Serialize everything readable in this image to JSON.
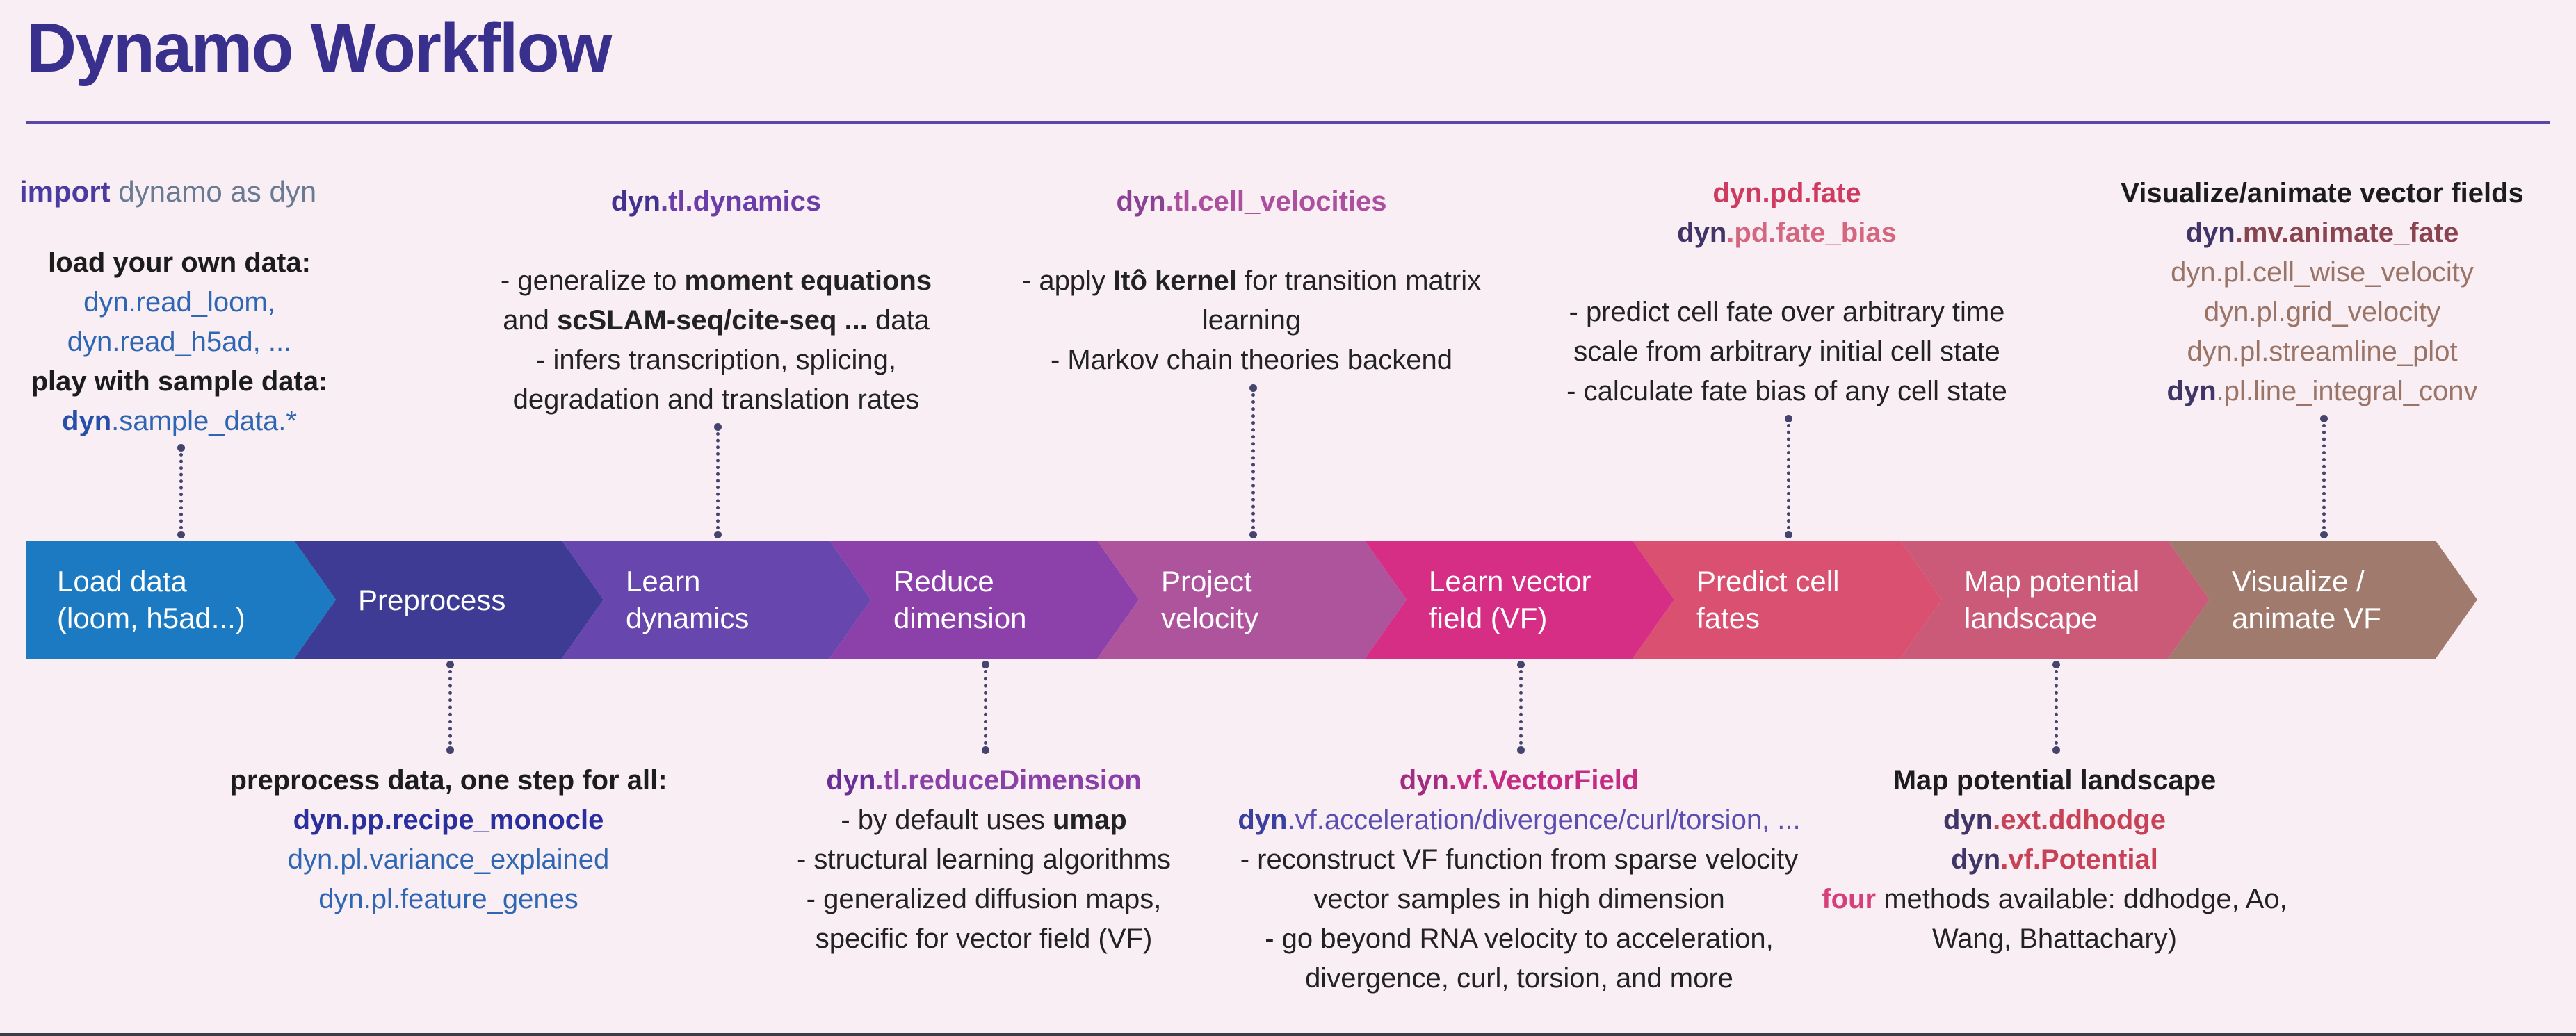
{
  "title": "Dynamo Workflow",
  "colors": {
    "background": "#f8eef3",
    "title": "#39308d",
    "divider": "#5846a8",
    "connector": "#45446f",
    "body_text": "#222222"
  },
  "import_line": [
    {
      "t": "import ",
      "c": "#4a3aa2",
      "b": true
    },
    {
      "t": "dynamo as dyn",
      "c": "#6b7a93"
    }
  ],
  "steps": [
    {
      "id": "load-data",
      "lines": [
        "Load data",
        "(loom, h5ad...)"
      ],
      "color": "#1b7ac2"
    },
    {
      "id": "preprocess",
      "lines": [
        "Preprocess"
      ],
      "color": "#3d3b94"
    },
    {
      "id": "learn-dynamics",
      "lines": [
        "Learn",
        "dynamics"
      ],
      "color": "#6746ad"
    },
    {
      "id": "reduce-dimension",
      "lines": [
        "Reduce",
        "dimension"
      ],
      "color": "#8b40aa"
    },
    {
      "id": "project-velocity",
      "lines": [
        "Project",
        "velocity"
      ],
      "color": "#ad549d"
    },
    {
      "id": "learn-vector-field",
      "lines": [
        "Learn vector",
        "field (VF)"
      ],
      "color": "#d62d85"
    },
    {
      "id": "predict-cell-fates",
      "lines": [
        "Predict cell",
        "fates"
      ],
      "color": "#d95071"
    },
    {
      "id": "map-potential-landscape",
      "lines": [
        "Map potential",
        "landscape"
      ],
      "color": "#cb5a78"
    },
    {
      "id": "visualize-animate-vf",
      "lines": [
        "Visualize /",
        "animate VF"
      ],
      "color": "#a17a6e"
    }
  ],
  "annotations_top": [
    {
      "id": "load-data-note",
      "lines": [
        [
          {
            "t": "load your own data:",
            "c": "#1c1c1c",
            "b": true
          }
        ],
        [
          {
            "t": "dyn",
            "c": "#2e66b4"
          },
          {
            "t": ".read_loom,",
            "c": "#2e66b4"
          }
        ],
        [
          {
            "t": "dyn",
            "c": "#2e66b4"
          },
          {
            "t": ".read_h5ad, ...",
            "c": "#2e66b4"
          }
        ],
        [
          {
            "t": "play with sample data:",
            "c": "#1c1c1c",
            "b": true
          }
        ],
        [
          {
            "t": "dyn",
            "c": "#274ea8",
            "b": true
          },
          {
            "t": ".sample_data.*",
            "c": "#2e66b4"
          }
        ]
      ]
    },
    {
      "id": "learn-dynamics-note",
      "lines": [
        [
          {
            "t": "dyn",
            "c": "#43318f",
            "b": true
          },
          {
            "t": ".tl.dynamics",
            "c": "#6a3da8",
            "b": true
          }
        ],
        [],
        [
          {
            "t": "- generalize to "
          },
          {
            "t": "moment equations",
            "b": true
          }
        ],
        [
          {
            "t": "and "
          },
          {
            "t": "scSLAM-seq/cite-seq ...",
            "b": true
          },
          {
            "t": " data"
          }
        ],
        [
          {
            "t": "- infers transcription, splicing,"
          }
        ],
        [
          {
            "t": "degradation and translation rates"
          }
        ]
      ]
    },
    {
      "id": "cell-velocities-note",
      "lines": [
        [
          {
            "t": "dyn",
            "c": "#8a4193",
            "b": true
          },
          {
            "t": ".tl.cell_velocities",
            "c": "#ad4f9f",
            "b": true
          }
        ],
        [],
        [
          {
            "t": "- apply "
          },
          {
            "t": "Itô kernel",
            "b": true
          },
          {
            "t": " for transition matrix"
          }
        ],
        [
          {
            "t": "learning"
          }
        ],
        [
          {
            "t": "- Markov chain theories backend"
          }
        ]
      ]
    },
    {
      "id": "fate-note",
      "lines": [
        [
          {
            "t": "dyn",
            "c": "#cf3a60",
            "b": true
          },
          {
            "t": ".pd.fate",
            "c": "#cf3a60",
            "b": true
          }
        ],
        [
          {
            "t": "dyn",
            "c": "#3f3566",
            "b": true
          },
          {
            "t": ".pd.fate_bias",
            "c": "#d4677f",
            "b": true
          }
        ],
        [],
        [
          {
            "t": "- predict cell fate over arbitrary time"
          }
        ],
        [
          {
            "t": "scale from arbitrary initial cell state"
          }
        ],
        [
          {
            "t": "- calculate fate bias of any cell state"
          }
        ]
      ]
    },
    {
      "id": "visualize-note",
      "lines": [
        [
          {
            "t": "Visualize/animate vector fields",
            "c": "#1c1c1c",
            "b": true
          }
        ],
        [
          {
            "t": "dyn",
            "c": "#3f3566",
            "b": true
          },
          {
            "t": ".mv.animate_fate",
            "c": "#8a4450",
            "b": true
          }
        ],
        [
          {
            "t": "dyn",
            "c": "#9b7468"
          },
          {
            "t": ".pl.cell_wise_velocity",
            "c": "#9b7468"
          }
        ],
        [
          {
            "t": "dyn",
            "c": "#9b7468"
          },
          {
            "t": ".pl.grid_velocity",
            "c": "#9b7468"
          }
        ],
        [
          {
            "t": "dyn",
            "c": "#9b7468"
          },
          {
            "t": ".pl.streamline_plot",
            "c": "#9b7468"
          }
        ],
        [
          {
            "t": "dyn",
            "c": "#3f3566",
            "b": true
          },
          {
            "t": ".pl.line_integral_conv",
            "c": "#9b7468"
          }
        ]
      ]
    }
  ],
  "annotations_bottom": [
    {
      "id": "preprocess-note",
      "lines": [
        [
          {
            "t": "preprocess data, one step for all:",
            "c": "#1c1c1c",
            "b": true
          }
        ],
        [
          {
            "t": "dyn",
            "c": "#2b2f9e",
            "b": true
          },
          {
            "t": ".pp.recipe_monocle",
            "c": "#2b2f9e",
            "b": true
          }
        ],
        [
          {
            "t": "dyn",
            "c": "#2e66b4"
          },
          {
            "t": ".pl.variance_explained",
            "c": "#2e66b4"
          }
        ],
        [
          {
            "t": "dyn",
            "c": "#2e66b4"
          },
          {
            "t": ".pl.feature_genes",
            "c": "#2e66b4"
          }
        ]
      ]
    },
    {
      "id": "reduce-dimension-note",
      "lines": [
        [
          {
            "t": "dyn",
            "c": "#6a2f96",
            "b": true
          },
          {
            "t": ".tl.reduceDimension",
            "c": "#8a3fa9",
            "b": true
          }
        ],
        [
          {
            "t": "- by default uses "
          },
          {
            "t": "umap",
            "b": true
          }
        ],
        [
          {
            "t": "- structural learning algorithms"
          }
        ],
        [
          {
            "t": "- generalized diffusion maps,"
          }
        ],
        [
          {
            "t": "specific for vector field (VF)"
          }
        ]
      ]
    },
    {
      "id": "vector-field-note",
      "lines": [
        [
          {
            "t": "dyn",
            "c": "#a12c80",
            "b": true
          },
          {
            "t": ".vf.VectorField",
            "c": "#c42c84",
            "b": true
          }
        ],
        [
          {
            "t": "dyn",
            "c": "#3b3f9e",
            "b": true
          },
          {
            "t": ".vf.acceleration/divergence/curl/torsion, ...",
            "c": "#5a4fb0"
          }
        ],
        [
          {
            "t": "- reconstruct VF function from sparse velocity"
          }
        ],
        [
          {
            "t": "vector samples in high dimension"
          }
        ],
        [
          {
            "t": "- go beyond RNA velocity to acceleration,"
          }
        ],
        [
          {
            "t": "divergence, curl, torsion, and more"
          }
        ]
      ]
    },
    {
      "id": "potential-note",
      "lines": [
        [
          {
            "t": "Map potential landscape",
            "c": "#1c1c1c",
            "b": true
          }
        ],
        [
          {
            "t": "dyn",
            "c": "#3f3566",
            "b": true
          },
          {
            "t": ".ext.ddhodge",
            "c": "#c84257",
            "b": true
          }
        ],
        [
          {
            "t": "dyn",
            "c": "#3f3566",
            "b": true
          },
          {
            "t": ".vf.Potential",
            "c": "#c84257",
            "b": true
          }
        ],
        [
          {
            "t": "four",
            "c": "#d6407a",
            "b": true
          },
          {
            "t": " methods available: ddhodge, Ao,"
          }
        ],
        [
          {
            "t": "Wang, Bhattachary)"
          }
        ]
      ]
    }
  ]
}
